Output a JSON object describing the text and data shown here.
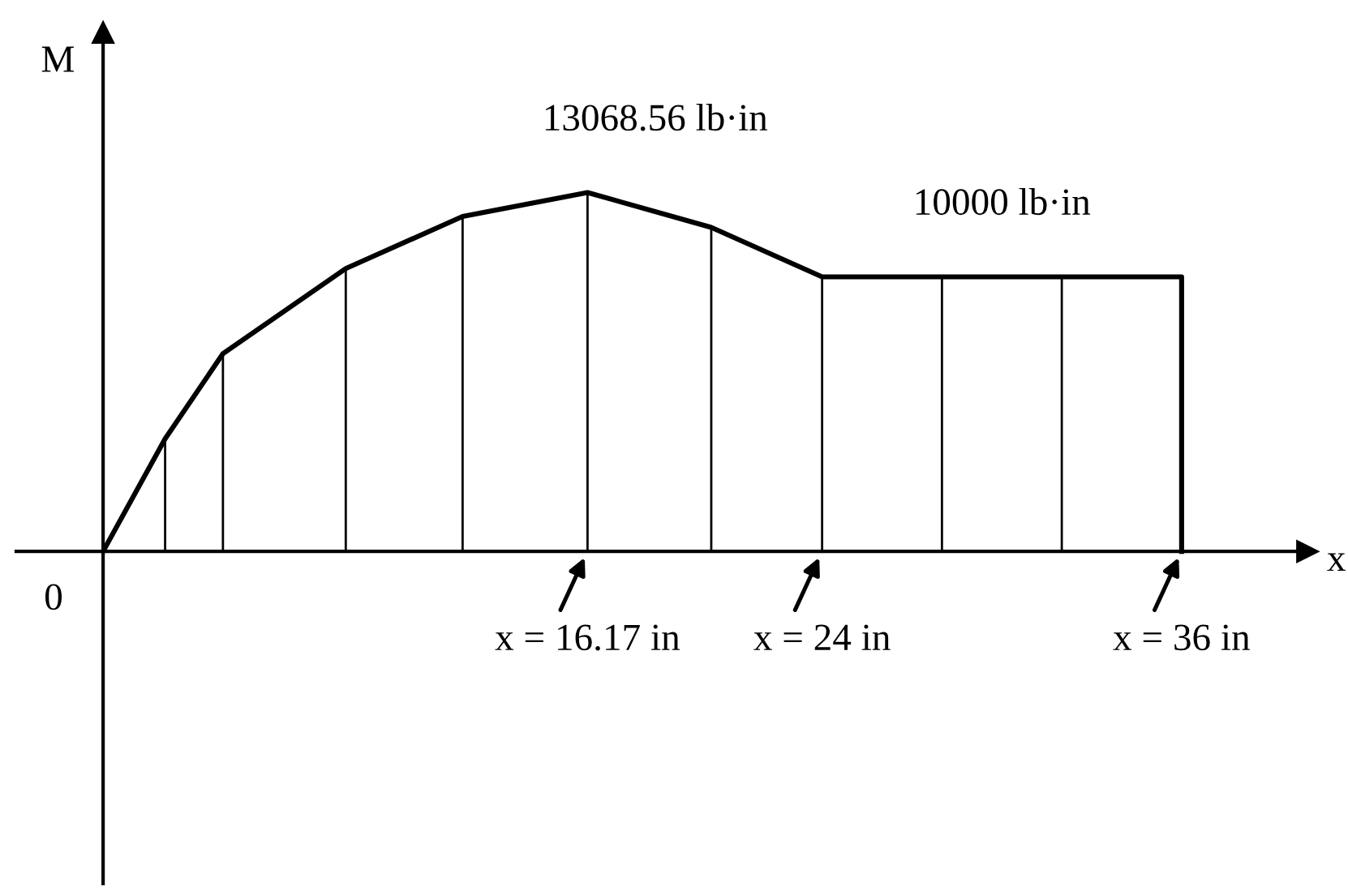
{
  "chart_data": {
    "type": "line",
    "xlabel": "x",
    "ylabel": "M",
    "x": [
      0,
      2.07,
      4,
      8.1,
      12,
      16.17,
      20.3,
      24,
      30,
      36,
      36
    ],
    "series": [
      {
        "color": "#000000",
        "values": [
          0,
          4100,
          7200,
          10300,
          12200,
          13068.56,
          11800,
          10000,
          10000,
          10000,
          0
        ],
        "value_labels": [
          null,
          null,
          null,
          null,
          null,
          "13068.56 lb·in",
          null,
          null,
          "10000 lb·in",
          null,
          null
        ]
      }
    ],
    "xlim": [
      -2.9,
      40.2
    ],
    "ylim": [
      -12100,
      18900
    ],
    "xticks": [
      {
        "value": 16.17,
        "label": "x = 16.17 in"
      },
      {
        "value": 24,
        "label": "x = 24 in"
      },
      {
        "value": 36,
        "label": "x = 36 in"
      }
    ],
    "annotations": [
      "0"
    ],
    "marker": "none",
    "line_style": "solid"
  }
}
